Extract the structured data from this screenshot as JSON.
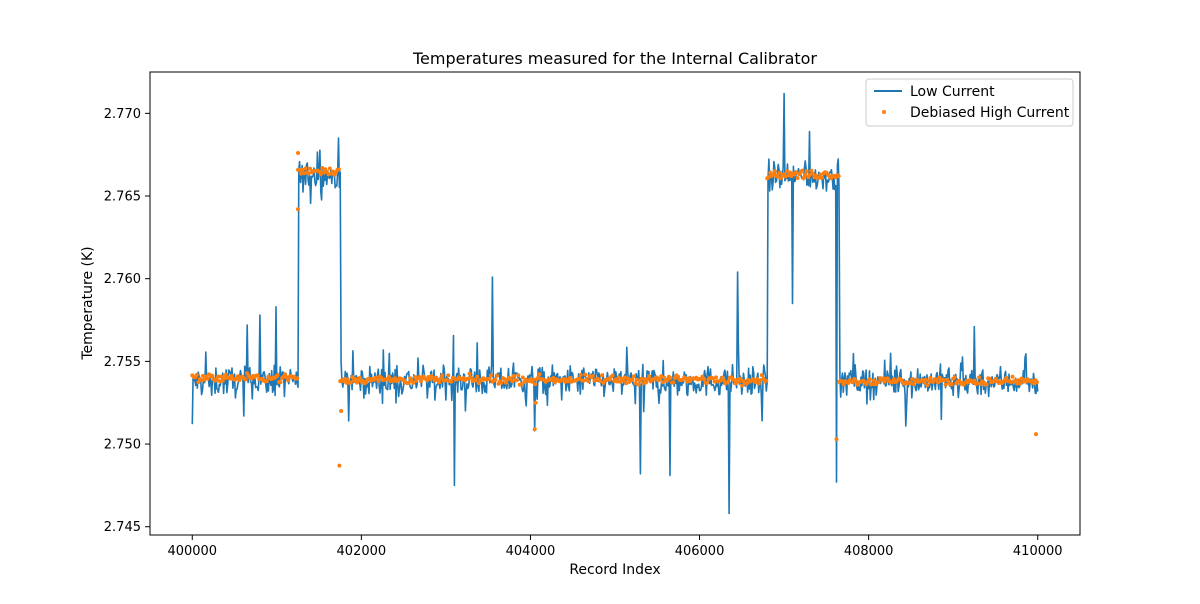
{
  "chart_data": {
    "type": "line",
    "title": "Temperatures measured for the Internal Calibrator",
    "xlabel": "Record Index",
    "ylabel": "Temperature (K)",
    "xlim": [
      399500,
      410500
    ],
    "ylim": [
      2.7445,
      2.7725
    ],
    "x_ticks": [
      400000,
      402000,
      404000,
      406000,
      408000,
      410000
    ],
    "x_tick_labels": [
      "400000",
      "402000",
      "404000",
      "406000",
      "408000",
      "410000"
    ],
    "y_ticks": [
      2.745,
      2.75,
      2.755,
      2.76,
      2.765,
      2.77
    ],
    "y_tick_labels": [
      "2.745",
      "2.750",
      "2.755",
      "2.760",
      "2.765",
      "2.770"
    ],
    "grid": false,
    "legend_position": "top-right",
    "legend": [
      "Low Current",
      "Debiased High Current"
    ],
    "colors": {
      "low_current": "#1f77b4",
      "debiased_high_current": "#ff7f0e"
    },
    "segments": [
      {
        "x_start": 400000,
        "x_end": 401250,
        "low_current_mean": 2.7538,
        "debiased_high_current_mean": 2.754
      },
      {
        "x_start": 401250,
        "x_end": 401750,
        "low_current_mean": 2.7662,
        "debiased_high_current_mean": 2.7665
      },
      {
        "x_start": 401750,
        "x_end": 406800,
        "low_current_mean": 2.7538,
        "debiased_high_current_mean": 2.7539
      },
      {
        "x_start": 406800,
        "x_end": 407650,
        "low_current_mean": 2.7662,
        "debiased_high_current_mean": 2.7663
      },
      {
        "x_start": 407650,
        "x_end": 410000,
        "low_current_mean": 2.7538,
        "debiased_high_current_mean": 2.7538
      }
    ],
    "low_current_spikes": [
      [
        400000,
        2.7512
      ],
      [
        400650,
        2.7572
      ],
      [
        400800,
        2.7578
      ],
      [
        400990,
        2.7583
      ],
      [
        401730,
        2.7485
      ],
      [
        401730,
        2.7685
      ],
      [
        403100,
        2.7475
      ],
      [
        403550,
        2.7601
      ],
      [
        404050,
        2.7508
      ],
      [
        405300,
        2.7482
      ],
      [
        405650,
        2.7481
      ],
      [
        406350,
        2.7458
      ],
      [
        406450,
        2.7604
      ],
      [
        407000,
        2.7712
      ],
      [
        407100,
        2.7585
      ],
      [
        407620,
        2.7477
      ],
      [
        407300,
        2.7689
      ],
      [
        409250,
        2.7571
      ]
    ],
    "debiased_high_current_outliers": [
      [
        401250,
        2.7676
      ],
      [
        401250,
        2.7642
      ],
      [
        401740,
        2.7487
      ],
      [
        401760,
        2.752
      ],
      [
        404050,
        2.7509
      ],
      [
        407620,
        2.7503
      ],
      [
        409980,
        2.7506
      ],
      [
        404060,
        2.7525
      ]
    ]
  }
}
